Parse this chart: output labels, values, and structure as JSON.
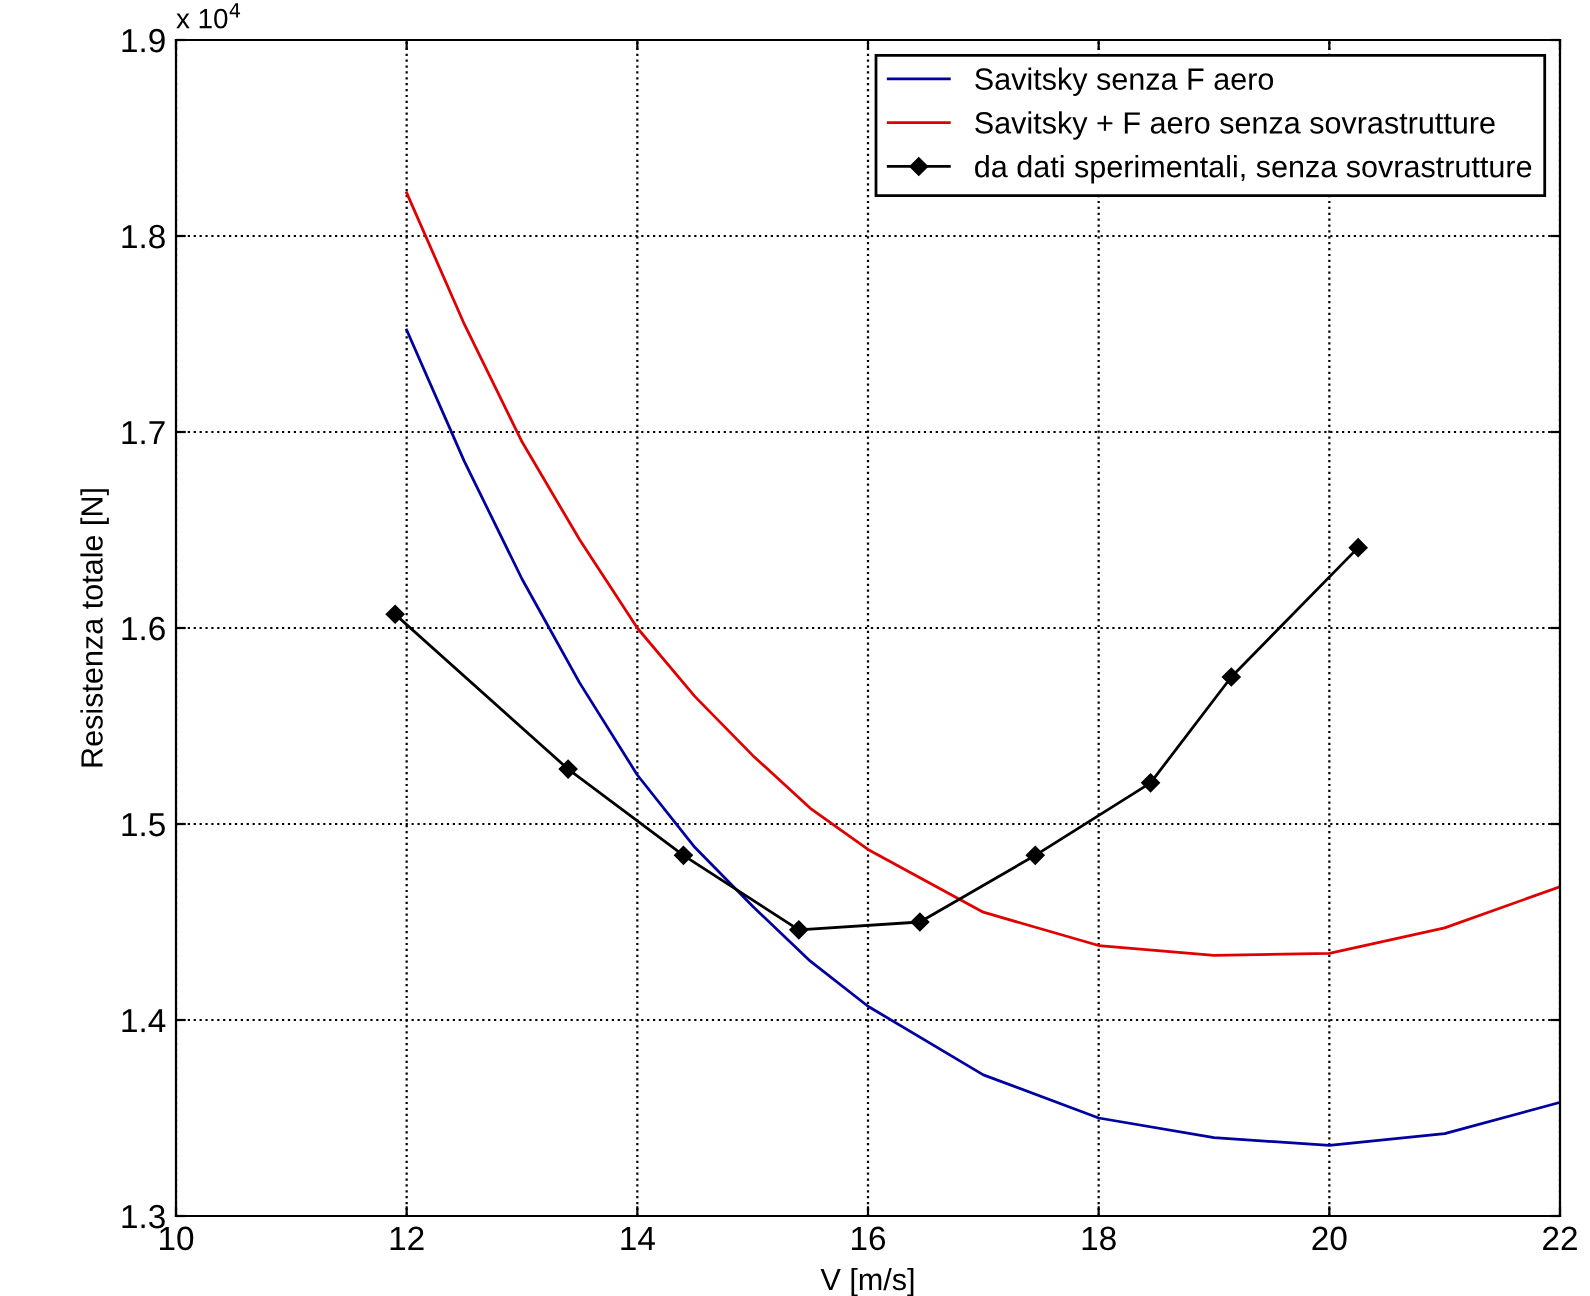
{
  "chart_data": {
    "type": "line",
    "xlabel": "V [m/s]",
    "ylabel": "Resistenza totale [N]",
    "annotations": [
      "x 10$^{4}$"
    ],
    "xlim": [
      10,
      22
    ],
    "xticks": [
      10,
      12,
      14,
      16,
      18,
      20,
      22
    ],
    "ylim": [
      1.3,
      1.9
    ],
    "yticks": [
      1.3,
      1.4,
      1.5,
      1.6,
      1.7,
      1.8,
      1.9
    ],
    "grid": true,
    "legend": "top right",
    "line_style": "solid",
    "series": [
      {
        "name": "Savitsky senza F aero",
        "color": "#0000a0",
        "marker": "none",
        "x": [
          12,
          12.5,
          13,
          13.5,
          14,
          14.5,
          15,
          15.5,
          16,
          17,
          18,
          19,
          20,
          21,
          22
        ],
        "values": [
          1.752,
          1.685,
          1.625,
          1.572,
          1.525,
          1.488,
          1.458,
          1.43,
          1.407,
          1.372,
          1.35,
          1.34,
          1.336,
          1.342,
          1.358
        ]
      },
      {
        "name": "Savitsky + F aero senza sovrastrutture",
        "color": "#e00000",
        "marker": "none",
        "x": [
          12,
          12.5,
          13,
          13.5,
          14,
          14.5,
          15,
          15.5,
          16,
          17,
          18,
          19,
          20,
          21,
          22
        ],
        "values": [
          1.822,
          1.755,
          1.695,
          1.645,
          1.6,
          1.565,
          1.535,
          1.508,
          1.487,
          1.455,
          1.438,
          1.433,
          1.434,
          1.447,
          1.468
        ]
      },
      {
        "name": "da dati sperimentali, senza sovrastrutture",
        "color": "#000000",
        "marker": "diamond",
        "x": [
          11.9,
          13.4,
          14.4,
          15.4,
          16.45,
          17.45,
          18.45,
          19.15,
          20.25
        ],
        "values": [
          1.607,
          1.528,
          1.484,
          1.446,
          1.45,
          1.484,
          1.521,
          1.575,
          1.641
        ]
      }
    ]
  }
}
